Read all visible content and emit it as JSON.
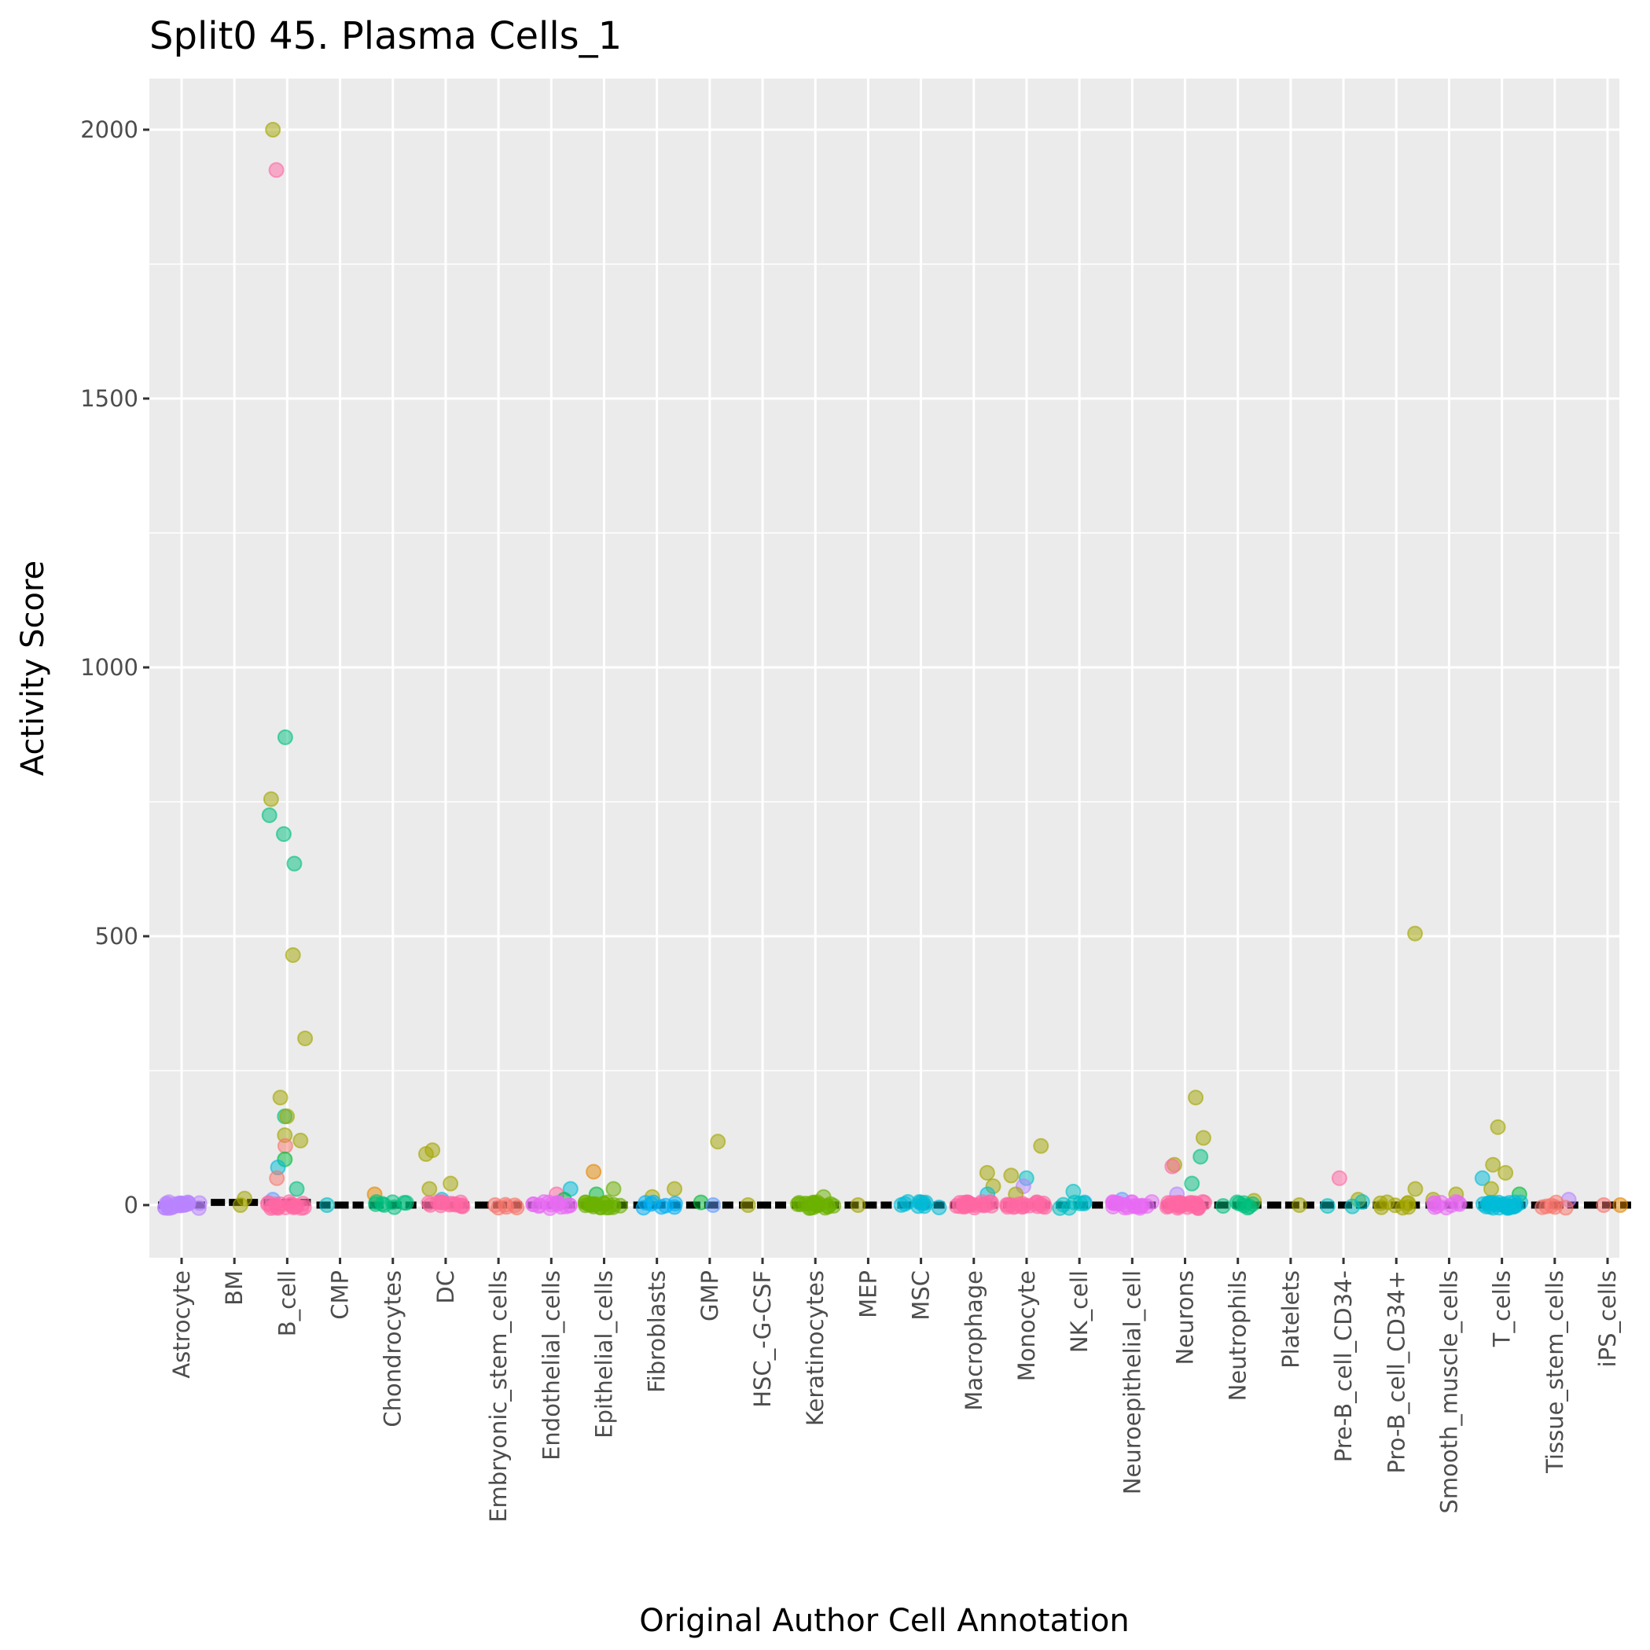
{
  "chart_data": {
    "type": "scatter",
    "subtype": "jittered strip plot with median bars",
    "title": "Split0 45. Plasma Cells_1",
    "xlabel": "Original Author Cell Annotation",
    "ylabel": "Activity Score",
    "ylim": [
      -100,
      2080
    ],
    "yticks": [
      0,
      500,
      1000,
      1500,
      2000
    ],
    "ytick_labels": [
      "0",
      "500",
      "1000",
      "1500",
      "2000"
    ],
    "grid": true,
    "legend": "none",
    "categories": [
      "Astrocyte",
      "BM",
      "B_cell",
      "CMP",
      "Chondrocytes",
      "DC",
      "Embryonic_stem_cells",
      "Endothelial_cells",
      "Epithelial_cells",
      "Fibroblasts",
      "GMP",
      "HSC_-G-CSF",
      "Keratinocytes",
      "MEP",
      "MSC",
      "Macrophage",
      "Monocyte",
      "NK_cell",
      "Neuroepithelial_cell",
      "Neurons",
      "Neutrophils",
      "Platelets",
      "Pre-B_cell_CD34-",
      "Pro-B_cell_CD34+",
      "Smooth_muscle_cells",
      "T_cells",
      "Tissue_stem_cells",
      "iPS_cells"
    ],
    "medians": [
      0,
      5,
      5,
      0,
      0,
      0,
      0,
      0,
      0,
      0,
      0,
      0,
      0,
      0,
      0,
      0,
      0,
      0,
      0,
      0,
      0,
      0,
      0,
      0,
      0,
      0,
      0,
      0
    ],
    "palette": [
      "#F8766D",
      "#E58700",
      "#C99800",
      "#A3A500",
      "#6BB100",
      "#00BA38",
      "#00BF7D",
      "#00C0AF",
      "#00BCD8",
      "#00B0F6",
      "#619CFF",
      "#B983FF",
      "#E76BF3",
      "#FD61D1",
      "#FF67A4"
    ],
    "points": [
      {
        "cat": "Astrocyte",
        "y": 0,
        "color": "#B983FF",
        "n": 25
      },
      {
        "cat": "BM",
        "y": 12,
        "color": "#A3A500"
      },
      {
        "cat": "BM",
        "y": 0,
        "color": "#A3A500"
      },
      {
        "cat": "B_cell",
        "y": 2000,
        "color": "#A3A500"
      },
      {
        "cat": "B_cell",
        "y": 1925,
        "color": "#FF67A4"
      },
      {
        "cat": "B_cell",
        "y": 870,
        "color": "#00BF7D"
      },
      {
        "cat": "B_cell",
        "y": 755,
        "color": "#A3A500"
      },
      {
        "cat": "B_cell",
        "y": 725,
        "color": "#00BF7D"
      },
      {
        "cat": "B_cell",
        "y": 690,
        "color": "#00BF7D"
      },
      {
        "cat": "B_cell",
        "y": 635,
        "color": "#00BF7D"
      },
      {
        "cat": "B_cell",
        "y": 465,
        "color": "#A3A500"
      },
      {
        "cat": "B_cell",
        "y": 310,
        "color": "#A3A500"
      },
      {
        "cat": "B_cell",
        "y": 200,
        "color": "#A3A500"
      },
      {
        "cat": "B_cell",
        "y": 165,
        "color": "#00BF7D"
      },
      {
        "cat": "B_cell",
        "y": 165,
        "color": "#A3A500"
      },
      {
        "cat": "B_cell",
        "y": 130,
        "color": "#A3A500"
      },
      {
        "cat": "B_cell",
        "y": 120,
        "color": "#A3A500"
      },
      {
        "cat": "B_cell",
        "y": 110,
        "color": "#F8766D"
      },
      {
        "cat": "B_cell",
        "y": 85,
        "color": "#00BA38"
      },
      {
        "cat": "B_cell",
        "y": 70,
        "color": "#00BCD8"
      },
      {
        "cat": "B_cell",
        "y": 50,
        "color": "#F8766D"
      },
      {
        "cat": "B_cell",
        "y": 30,
        "color": "#00BF7D"
      },
      {
        "cat": "B_cell",
        "y": 10,
        "color": "#619CFF"
      },
      {
        "cat": "B_cell",
        "y": 0,
        "color": "#FF67A4",
        "n": 20
      },
      {
        "cat": "CMP",
        "y": 0,
        "color": "#00BFC4"
      },
      {
        "cat": "Chondrocytes",
        "y": 20,
        "color": "#E58700"
      },
      {
        "cat": "Chondrocytes",
        "y": 0,
        "color": "#00BF7D",
        "n": 8
      },
      {
        "cat": "DC",
        "y": 102,
        "color": "#A3A500"
      },
      {
        "cat": "DC",
        "y": 95,
        "color": "#A3A500"
      },
      {
        "cat": "DC",
        "y": 40,
        "color": "#A3A500"
      },
      {
        "cat": "DC",
        "y": 30,
        "color": "#A3A500"
      },
      {
        "cat": "DC",
        "y": 10,
        "color": "#00BCD8"
      },
      {
        "cat": "DC",
        "y": 0,
        "color": "#FF67A4",
        "n": 15
      },
      {
        "cat": "Embryonic_stem_cells",
        "y": 0,
        "color": "#F8766D",
        "n": 6
      },
      {
        "cat": "Endothelial_cells",
        "y": 30,
        "color": "#00BCD8"
      },
      {
        "cat": "Endothelial_cells",
        "y": 20,
        "color": "#FF67A4"
      },
      {
        "cat": "Endothelial_cells",
        "y": 10,
        "color": "#00BA38"
      },
      {
        "cat": "Endothelial_cells",
        "y": 0,
        "color": "#E76BF3",
        "n": 15
      },
      {
        "cat": "Epithelial_cells",
        "y": 62,
        "color": "#E58700"
      },
      {
        "cat": "Epithelial_cells",
        "y": 30,
        "color": "#6BB100"
      },
      {
        "cat": "Epithelial_cells",
        "y": 20,
        "color": "#00BA38"
      },
      {
        "cat": "Epithelial_cells",
        "y": 0,
        "color": "#6BB100",
        "n": 20
      },
      {
        "cat": "Fibroblasts",
        "y": 30,
        "color": "#A3A500"
      },
      {
        "cat": "Fibroblasts",
        "y": 15,
        "color": "#A3A500"
      },
      {
        "cat": "Fibroblasts",
        "y": 0,
        "color": "#00B0F6",
        "n": 8
      },
      {
        "cat": "GMP",
        "y": 118,
        "color": "#A3A500"
      },
      {
        "cat": "GMP",
        "y": 5,
        "color": "#00BA38"
      },
      {
        "cat": "GMP",
        "y": 0,
        "color": "#619CFF"
      },
      {
        "cat": "HSC_-G-CSF",
        "y": 0,
        "color": "#A3A500"
      },
      {
        "cat": "Keratinocytes",
        "y": 15,
        "color": "#6BB100"
      },
      {
        "cat": "Keratinocytes",
        "y": 0,
        "color": "#6BB100",
        "n": 20
      },
      {
        "cat": "MEP",
        "y": 0,
        "color": "#A3A500"
      },
      {
        "cat": "MSC",
        "y": 5,
        "color": "#F8766D"
      },
      {
        "cat": "MSC",
        "y": 0,
        "color": "#00BCD8",
        "n": 10
      },
      {
        "cat": "Macrophage",
        "y": 60,
        "color": "#A3A500"
      },
      {
        "cat": "Macrophage",
        "y": 35,
        "color": "#A3A500"
      },
      {
        "cat": "Macrophage",
        "y": 20,
        "color": "#00BCD8"
      },
      {
        "cat": "Macrophage",
        "y": 0,
        "color": "#FF67A4",
        "n": 25
      },
      {
        "cat": "Monocyte",
        "y": 110,
        "color": "#A3A500"
      },
      {
        "cat": "Monocyte",
        "y": 55,
        "color": "#A3A500"
      },
      {
        "cat": "Monocyte",
        "y": 50,
        "color": "#00BFC4"
      },
      {
        "cat": "Monocyte",
        "y": 35,
        "color": "#B983FF"
      },
      {
        "cat": "Monocyte",
        "y": 20,
        "color": "#A3A500"
      },
      {
        "cat": "Monocyte",
        "y": 0,
        "color": "#FF67A4",
        "n": 20
      },
      {
        "cat": "NK_cell",
        "y": 25,
        "color": "#00BFC4"
      },
      {
        "cat": "NK_cell",
        "y": 5,
        "color": "#00B0F6"
      },
      {
        "cat": "NK_cell",
        "y": 0,
        "color": "#00BFC4",
        "n": 6
      },
      {
        "cat": "Neuroepithelial_cell",
        "y": 10,
        "color": "#619CFF"
      },
      {
        "cat": "Neuroepithelial_cell",
        "y": 0,
        "color": "#E76BF3",
        "n": 20
      },
      {
        "cat": "Neurons",
        "y": 200,
        "color": "#A3A500"
      },
      {
        "cat": "Neurons",
        "y": 125,
        "color": "#A3A500"
      },
      {
        "cat": "Neurons",
        "y": 90,
        "color": "#00BF7D"
      },
      {
        "cat": "Neurons",
        "y": 75,
        "color": "#A3A500"
      },
      {
        "cat": "Neurons",
        "y": 72,
        "color": "#FF67A4"
      },
      {
        "cat": "Neurons",
        "y": 40,
        "color": "#00BF7D"
      },
      {
        "cat": "Neurons",
        "y": 20,
        "color": "#B983FF"
      },
      {
        "cat": "Neurons",
        "y": 0,
        "color": "#FF67A4",
        "n": 30
      },
      {
        "cat": "Neutrophils",
        "y": 8,
        "color": "#A3A500"
      },
      {
        "cat": "Neutrophils",
        "y": 0,
        "color": "#00BF7D",
        "n": 8
      },
      {
        "cat": "Platelets",
        "y": 0,
        "color": "#A3A500"
      },
      {
        "cat": "Pre-B_cell_CD34-",
        "y": 50,
        "color": "#FF67A4"
      },
      {
        "cat": "Pre-B_cell_CD34-",
        "y": 10,
        "color": "#A3A500"
      },
      {
        "cat": "Pre-B_cell_CD34-",
        "y": 0,
        "color": "#00BFC4",
        "n": 3
      },
      {
        "cat": "Pro-B_cell_CD34+",
        "y": 505,
        "color": "#A3A500"
      },
      {
        "cat": "Pro-B_cell_CD34+",
        "y": 30,
        "color": "#A3A500"
      },
      {
        "cat": "Pro-B_cell_CD34+",
        "y": 0,
        "color": "#A3A500",
        "n": 8
      },
      {
        "cat": "Smooth_muscle_cells",
        "y": 20,
        "color": "#A3A500"
      },
      {
        "cat": "Smooth_muscle_cells",
        "y": 10,
        "color": "#A3A500"
      },
      {
        "cat": "Smooth_muscle_cells",
        "y": 0,
        "color": "#E76BF3",
        "n": 10
      },
      {
        "cat": "T_cells",
        "y": 145,
        "color": "#A3A500"
      },
      {
        "cat": "T_cells",
        "y": 75,
        "color": "#A3A500"
      },
      {
        "cat": "T_cells",
        "y": 60,
        "color": "#A3A500"
      },
      {
        "cat": "T_cells",
        "y": 50,
        "color": "#00BCD8"
      },
      {
        "cat": "T_cells",
        "y": 30,
        "color": "#A3A500"
      },
      {
        "cat": "T_cells",
        "y": 20,
        "color": "#00BA38"
      },
      {
        "cat": "T_cells",
        "y": 0,
        "color": "#00BCD8",
        "n": 25
      },
      {
        "cat": "Tissue_stem_cells",
        "y": 10,
        "color": "#B983FF"
      },
      {
        "cat": "Tissue_stem_cells",
        "y": 0,
        "color": "#F8766D",
        "n": 6
      },
      {
        "cat": "iPS_cells",
        "y": 0,
        "color": "#F8766D"
      },
      {
        "cat": "iPS_cells",
        "y": 0,
        "color": "#E58700"
      }
    ]
  }
}
